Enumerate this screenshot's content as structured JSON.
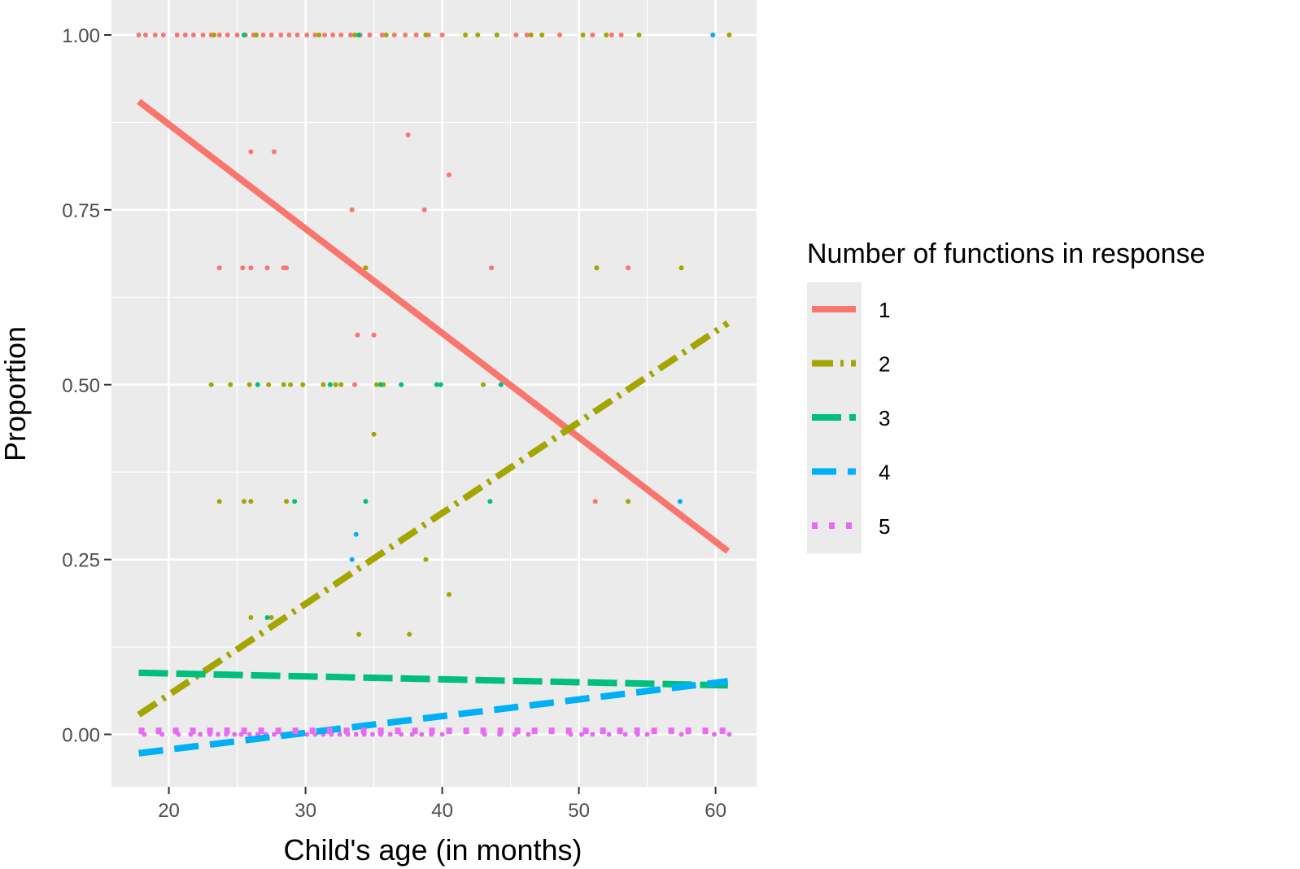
{
  "chart_data": {
    "type": "scatter",
    "title": "",
    "xlabel": "Child's age (in months)",
    "ylabel": "Proportion",
    "xlim": [
      15.8,
      63
    ],
    "ylim": [
      -0.075,
      1.05
    ],
    "x_ticks": [
      20,
      30,
      40,
      50,
      60
    ],
    "x_tick_labels": [
      "20",
      "30",
      "40",
      "50",
      "60"
    ],
    "y_ticks": [
      0,
      0.25,
      0.5,
      0.75,
      1
    ],
    "y_tick_labels": [
      "0.00",
      "0.25",
      "0.50",
      "0.75",
      "1.00"
    ],
    "grid": true,
    "legend": {
      "title": "Number of functions in response",
      "position": "right"
    },
    "series": [
      {
        "name": "1",
        "color": "#F8766D",
        "dash": "solid",
        "fit_line": [
          [
            17.8,
            0.905
          ],
          [
            60.9,
            0.262
          ]
        ],
        "points": [
          [
            17.8,
            1
          ],
          [
            18.3,
            1
          ],
          [
            19,
            1
          ],
          [
            19.6,
            1
          ],
          [
            20.6,
            1
          ],
          [
            21.2,
            1
          ],
          [
            21.8,
            1
          ],
          [
            22.5,
            1
          ],
          [
            23.1,
            1
          ],
          [
            23.7,
            1
          ],
          [
            24.3,
            1
          ],
          [
            25,
            1
          ],
          [
            25.6,
            1
          ],
          [
            26.2,
            1
          ],
          [
            26.9,
            1
          ],
          [
            27.5,
            1
          ],
          [
            28.2,
            1
          ],
          [
            28.8,
            1
          ],
          [
            29.4,
            1
          ],
          [
            30.1,
            1
          ],
          [
            30.7,
            1
          ],
          [
            31.4,
            1
          ],
          [
            32,
            1
          ],
          [
            32.6,
            1
          ],
          [
            33.3,
            1
          ],
          [
            34,
            1
          ],
          [
            34.7,
            1
          ],
          [
            35.6,
            1
          ],
          [
            36.5,
            1
          ],
          [
            37.3,
            1
          ],
          [
            38.1,
            1
          ],
          [
            39,
            1
          ],
          [
            40,
            1
          ],
          [
            45.4,
            1
          ],
          [
            46.2,
            1
          ],
          [
            48.6,
            1
          ],
          [
            51,
            1
          ],
          [
            52.4,
            1
          ],
          [
            53.1,
            1
          ],
          [
            26,
            0.833
          ],
          [
            27.7,
            0.833
          ],
          [
            37.5,
            0.857
          ],
          [
            40.5,
            0.8
          ],
          [
            33.4,
            0.75
          ],
          [
            38.7,
            0.75
          ],
          [
            23.7,
            0.667
          ],
          [
            25.4,
            0.667
          ],
          [
            26,
            0.667
          ],
          [
            27.2,
            0.667
          ],
          [
            28.4,
            0.667
          ],
          [
            28.6,
            0.667
          ],
          [
            43.6,
            0.667
          ],
          [
            53.6,
            0.667
          ],
          [
            33.8,
            0.571
          ],
          [
            35,
            0.571
          ],
          [
            33.6,
            0.5
          ],
          [
            28.6,
            0.333
          ],
          [
            51.2,
            0.333
          ]
        ]
      },
      {
        "name": "2",
        "color": "#A3A500",
        "dash": "dash-dot",
        "fit_line": [
          [
            17.8,
            0.028
          ],
          [
            60.9,
            0.588
          ]
        ],
        "points": [
          [
            23.3,
            1
          ],
          [
            26.4,
            1
          ],
          [
            31,
            1
          ],
          [
            33.6,
            1
          ],
          [
            35.9,
            1
          ],
          [
            38.8,
            1
          ],
          [
            41.7,
            1
          ],
          [
            42.6,
            1
          ],
          [
            44,
            1
          ],
          [
            46.5,
            1
          ],
          [
            47.3,
            1
          ],
          [
            50.3,
            1
          ],
          [
            52,
            1
          ],
          [
            54.4,
            1
          ],
          [
            61,
            1
          ],
          [
            23.1,
            0.5
          ],
          [
            24.5,
            0.5
          ],
          [
            25.9,
            0.5
          ],
          [
            27.3,
            0.5
          ],
          [
            28.4,
            0.5
          ],
          [
            28.9,
            0.5
          ],
          [
            29.8,
            0.5
          ],
          [
            31.3,
            0.5
          ],
          [
            32.2,
            0.5
          ],
          [
            32.6,
            0.5
          ],
          [
            35.2,
            0.5
          ],
          [
            35.7,
            0.5
          ],
          [
            43,
            0.5
          ],
          [
            34.4,
            0.667
          ],
          [
            51.3,
            0.667
          ],
          [
            57.5,
            0.667
          ],
          [
            35,
            0.429
          ],
          [
            23.7,
            0.333
          ],
          [
            25.5,
            0.333
          ],
          [
            26,
            0.333
          ],
          [
            28.6,
            0.333
          ],
          [
            53.6,
            0.333
          ],
          [
            26,
            0.167
          ],
          [
            27.5,
            0.167
          ],
          [
            33.9,
            0.143
          ],
          [
            37.6,
            0.143
          ],
          [
            38.8,
            0.25
          ],
          [
            40.5,
            0.2
          ]
        ]
      },
      {
        "name": "3",
        "color": "#00BF7D",
        "dash": "long-dash",
        "fit_line": [
          [
            17.8,
            0.088
          ],
          [
            60.9,
            0.07
          ]
        ],
        "points": [
          [
            25.5,
            1
          ],
          [
            33.9,
            1
          ],
          [
            26.5,
            0.5
          ],
          [
            31.8,
            0.5
          ],
          [
            35.5,
            0.5
          ],
          [
            37,
            0.5
          ],
          [
            39.6,
            0.5
          ],
          [
            39.9,
            0.5
          ],
          [
            44.3,
            0.5
          ],
          [
            29.2,
            0.333
          ],
          [
            34.4,
            0.333
          ],
          [
            43.5,
            0.333
          ],
          [
            27.2,
            0.167
          ]
        ]
      },
      {
        "name": "4",
        "color": "#00B0F6",
        "dash": "dash",
        "fit_line": [
          [
            17.8,
            -0.027
          ],
          [
            60.9,
            0.076
          ]
        ],
        "points": [
          [
            59.8,
            1
          ],
          [
            57.4,
            0.333
          ],
          [
            33.7,
            0.286
          ],
          [
            33.4,
            0.25
          ]
        ]
      },
      {
        "name": "5",
        "color": "#E76BF3",
        "dash": "dotted",
        "fit_line": [
          [
            17.8,
            0.005
          ],
          [
            60.9,
            0.005
          ]
        ],
        "points": [
          [
            18.2,
            0
          ],
          [
            19.5,
            0
          ],
          [
            20.7,
            0
          ],
          [
            21.6,
            0
          ],
          [
            22.3,
            0
          ],
          [
            23,
            0
          ],
          [
            23.6,
            0
          ],
          [
            24.2,
            0
          ],
          [
            24.8,
            0
          ],
          [
            25.3,
            0
          ],
          [
            25.9,
            0
          ],
          [
            26.5,
            0
          ],
          [
            27.1,
            0
          ],
          [
            27.7,
            0
          ],
          [
            28.3,
            0
          ],
          [
            28.9,
            0
          ],
          [
            29.5,
            0
          ],
          [
            30.1,
            0
          ],
          [
            30.7,
            0
          ],
          [
            31.3,
            0
          ],
          [
            31.9,
            0
          ],
          [
            32.5,
            0
          ],
          [
            33.1,
            0
          ],
          [
            33.7,
            0
          ],
          [
            34.3,
            0
          ],
          [
            34.9,
            0
          ],
          [
            35.5,
            0
          ],
          [
            36.2,
            0
          ],
          [
            37,
            0
          ],
          [
            37.8,
            0
          ],
          [
            38.5,
            0
          ],
          [
            39.2,
            0
          ],
          [
            40,
            0
          ],
          [
            43.1,
            0
          ],
          [
            44.2,
            0
          ],
          [
            45.3,
            0
          ],
          [
            46.3,
            0
          ],
          [
            49.4,
            0
          ],
          [
            50.2,
            0
          ],
          [
            51,
            0
          ],
          [
            52.2,
            0
          ],
          [
            53.4,
            0
          ],
          [
            54.3,
            0
          ],
          [
            55,
            0
          ],
          [
            57.5,
            0
          ],
          [
            59.9,
            0
          ],
          [
            61,
            0
          ]
        ]
      }
    ]
  }
}
